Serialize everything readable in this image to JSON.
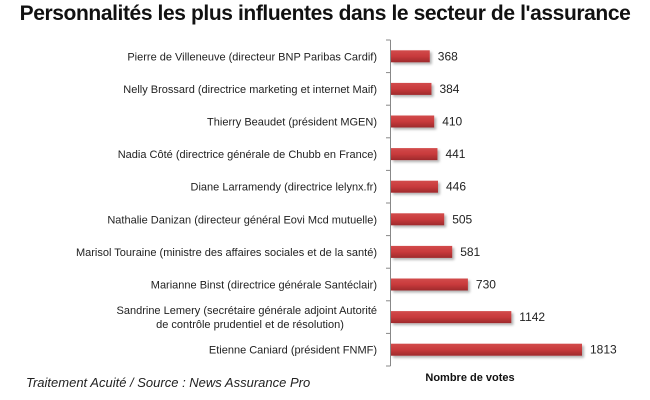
{
  "chart_data": {
    "type": "bar",
    "orientation": "horizontal",
    "title": "Personnalités les plus influentes dans le secteur de l'assurance",
    "xlabel": "Nombre de votes",
    "ylabel": "",
    "categories": [
      [
        "Pierre de Villeneuve (directeur BNP Paribas Cardif)"
      ],
      [
        "Nelly Brossard (directrice marketing et internet Maif)"
      ],
      [
        "Thierry Beaudet (président MGEN)"
      ],
      [
        "Nadia Côté (directrice générale de Chubb en France)"
      ],
      [
        "Diane Larramendy (directrice lelynx.fr)"
      ],
      [
        "Nathalie Danizan (directeur général Eovi Mcd mutuelle)"
      ],
      [
        "Marisol Touraine (ministre des affaires sociales et de la santé)"
      ],
      [
        "Marianne Binst (directrice générale Santéclair)"
      ],
      [
        "Sandrine Lemery (secrétaire générale adjoint Autorité",
        "de contrôle prudentiel et de résolution)"
      ],
      [
        "Etienne Caniard (président FNMF)"
      ]
    ],
    "values": [
      368,
      384,
      410,
      441,
      446,
      505,
      581,
      730,
      1142,
      1813
    ],
    "data_labels": [
      "368",
      "384",
      "410",
      "441",
      "446",
      "505",
      "581",
      "730",
      "1142",
      "1813"
    ],
    "xlim": [
      0,
      1813
    ],
    "grid": false,
    "legend": "none",
    "bar_color": "#c0393b"
  },
  "footer": {
    "source": "Traitement Acuité / Source : News Assurance Pro"
  }
}
